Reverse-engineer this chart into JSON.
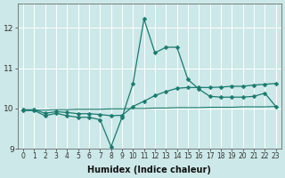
{
  "xlabel": "Humidex (Indice chaleur)",
  "x_values": [
    0,
    1,
    2,
    3,
    4,
    5,
    6,
    7,
    8,
    9,
    10,
    11,
    12,
    13,
    14,
    15,
    16,
    17,
    18,
    19,
    20,
    21,
    22,
    23
  ],
  "line1": [
    9.95,
    9.95,
    9.82,
    9.88,
    9.82,
    9.78,
    9.78,
    9.72,
    9.05,
    9.78,
    10.62,
    12.22,
    11.38,
    11.52,
    11.52,
    10.72,
    10.48,
    10.3,
    10.28,
    10.28,
    10.28,
    10.3,
    10.38,
    10.05
  ],
  "line2": [
    9.97,
    9.97,
    9.88,
    9.92,
    9.9,
    9.87,
    9.87,
    9.85,
    9.82,
    9.83,
    10.05,
    10.18,
    10.32,
    10.42,
    10.5,
    10.52,
    10.52,
    10.52,
    10.53,
    10.55,
    10.55,
    10.58,
    10.6,
    10.62
  ],
  "line3": [
    9.95,
    9.96,
    9.96,
    9.97,
    9.97,
    9.98,
    9.98,
    9.98,
    9.99,
    9.99,
    10.0,
    10.0,
    10.01,
    10.01,
    10.02,
    10.02,
    10.02,
    10.03,
    10.03,
    10.03,
    10.04,
    10.04,
    10.04,
    10.05
  ],
  "line_color": "#1a7a6e",
  "bg_color": "#cce8e8",
  "grid_color": "#ffffff",
  "ylim": [
    9.0,
    12.6
  ],
  "yticks": [
    9,
    10,
    11,
    12
  ],
  "xlim": [
    -0.5,
    23.5
  ],
  "tick_fontsize": 5.5,
  "label_fontsize": 7
}
